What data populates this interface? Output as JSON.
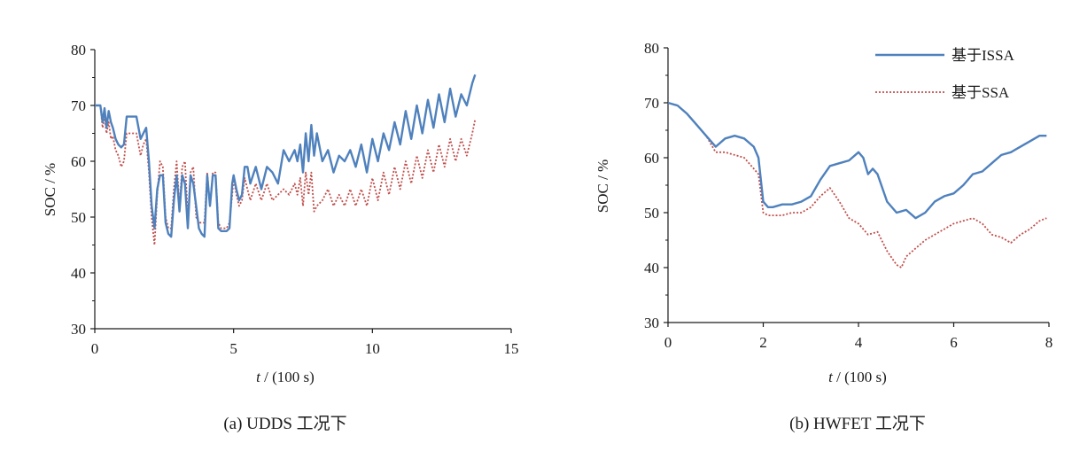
{
  "chart_data": [
    {
      "type": "line",
      "caption": "(a) UDDS 工况下",
      "xlabel_italic": "t",
      "xlabel_rest": " / (100 s)",
      "ylabel": "SOC / %",
      "xlim": [
        0,
        15
      ],
      "ylim": [
        30,
        80
      ],
      "xticks": [
        0,
        5,
        10,
        15
      ],
      "yticks": [
        30,
        40,
        50,
        60,
        70,
        80
      ],
      "grid": false,
      "legend": "none",
      "series": [
        {
          "name": "基于ISSA",
          "color": "#4f81bd",
          "style": "solid",
          "x": [
            0,
            0.1,
            0.2,
            0.28,
            0.35,
            0.42,
            0.5,
            0.58,
            0.65,
            0.75,
            0.85,
            0.95,
            1.05,
            1.15,
            1.25,
            1.5,
            1.65,
            1.75,
            1.85,
            1.95,
            2.05,
            2.15,
            2.25,
            2.35,
            2.45,
            2.55,
            2.65,
            2.75,
            2.85,
            2.95,
            3.05,
            3.15,
            3.25,
            3.35,
            3.45,
            3.55,
            3.65,
            3.75,
            3.85,
            3.95,
            4.05,
            4.15,
            4.25,
            4.35,
            4.45,
            4.55,
            4.65,
            4.75,
            4.85,
            4.95,
            5.0,
            5.1,
            5.2,
            5.3,
            5.4,
            5.5,
            5.6,
            5.8,
            6.0,
            6.2,
            6.4,
            6.6,
            6.8,
            7.0,
            7.2,
            7.3,
            7.4,
            7.5,
            7.6,
            7.7,
            7.8,
            7.9,
            8.0,
            8.2,
            8.4,
            8.6,
            8.8,
            9.0,
            9.2,
            9.4,
            9.6,
            9.8,
            10.0,
            10.2,
            10.4,
            10.6,
            10.8,
            11.0,
            11.2,
            11.4,
            11.6,
            11.8,
            12.0,
            12.2,
            12.4,
            12.6,
            12.8,
            13.0,
            13.2,
            13.4,
            13.6,
            13.7
          ],
          "y": [
            70,
            70,
            70,
            67,
            69.5,
            66,
            69,
            67,
            66,
            64,
            63,
            62.5,
            63,
            68,
            68,
            68,
            64,
            65,
            66,
            60,
            52,
            48,
            55,
            57.5,
            57.5,
            49,
            47,
            46.5,
            53,
            57.5,
            51,
            57.5,
            56,
            48,
            57.5,
            56,
            52,
            48,
            47,
            46.5,
            57.5,
            52,
            57.5,
            57.5,
            48,
            47.5,
            47.5,
            47.5,
            48,
            56,
            57.5,
            55,
            53,
            54,
            59,
            59,
            56,
            59,
            55,
            59,
            58,
            56,
            62,
            60,
            62,
            60,
            63,
            58,
            65,
            60,
            66.5,
            61,
            65,
            60,
            62,
            58,
            61,
            60,
            62,
            59,
            63,
            58,
            64,
            60,
            65,
            62,
            67,
            63,
            69,
            64,
            70,
            65,
            71,
            66,
            72,
            67,
            73,
            68,
            72,
            70,
            74,
            75.5
          ]
        },
        {
          "name": "基于SSA",
          "color": "#c0504d",
          "style": "dotted",
          "x": [
            0,
            0.1,
            0.2,
            0.28,
            0.35,
            0.42,
            0.5,
            0.58,
            0.65,
            0.75,
            0.85,
            0.95,
            1.05,
            1.15,
            1.25,
            1.5,
            1.65,
            1.75,
            1.85,
            1.95,
            2.05,
            2.15,
            2.25,
            2.35,
            2.45,
            2.55,
            2.65,
            2.75,
            2.85,
            2.95,
            3.05,
            3.15,
            3.25,
            3.35,
            3.45,
            3.55,
            3.65,
            3.75,
            3.85,
            3.95,
            4.05,
            4.15,
            4.25,
            4.35,
            4.45,
            4.55,
            4.65,
            4.75,
            4.85,
            4.95,
            5.0,
            5.1,
            5.2,
            5.3,
            5.4,
            5.5,
            5.6,
            5.8,
            6.0,
            6.2,
            6.4,
            6.6,
            6.8,
            7.0,
            7.2,
            7.3,
            7.4,
            7.5,
            7.6,
            7.7,
            7.8,
            7.9,
            8.0,
            8.2,
            8.4,
            8.6,
            8.8,
            9.0,
            9.2,
            9.4,
            9.6,
            9.8,
            10.0,
            10.2,
            10.4,
            10.6,
            10.8,
            11.0,
            11.2,
            11.4,
            11.6,
            11.8,
            12.0,
            12.2,
            12.4,
            12.6,
            12.8,
            13.0,
            13.2,
            13.4,
            13.6,
            13.7
          ],
          "y": [
            70,
            70,
            70,
            66,
            68,
            65,
            67,
            64,
            64.5,
            62,
            61,
            59,
            60,
            65,
            65,
            65,
            61,
            63,
            64,
            58,
            50,
            45,
            54,
            60,
            59,
            50,
            48,
            48,
            55,
            60,
            52,
            59,
            60,
            50,
            58,
            59,
            50,
            49,
            49,
            49,
            58,
            52,
            58,
            58,
            49,
            48,
            48,
            48,
            49,
            54,
            57,
            54,
            52,
            53,
            57,
            55,
            53,
            56,
            53,
            56,
            53,
            54,
            55,
            54,
            56,
            54,
            57,
            52,
            58,
            54,
            58,
            51,
            52,
            53,
            55,
            52,
            54,
            52,
            55,
            52,
            55,
            52,
            57,
            53,
            58,
            54,
            59,
            55,
            60,
            56,
            61,
            57,
            62,
            58,
            63,
            59,
            64,
            60,
            64,
            61,
            65,
            67.5
          ]
        }
      ]
    },
    {
      "type": "line",
      "caption": "(b) HWFET 工况下",
      "xlabel_italic": "t",
      "xlabel_rest": " / (100 s)",
      "ylabel": "SOC / %",
      "xlim": [
        0,
        8
      ],
      "ylim": [
        30,
        80
      ],
      "xticks": [
        0,
        2,
        4,
        6,
        8
      ],
      "yticks": [
        30,
        40,
        50,
        60,
        70,
        80
      ],
      "grid": false,
      "legend": "top-right",
      "series": [
        {
          "name": "基于ISSA",
          "color": "#4f81bd",
          "style": "solid",
          "x": [
            0,
            0.2,
            0.4,
            0.6,
            0.8,
            1.0,
            1.2,
            1.4,
            1.6,
            1.8,
            1.9,
            2.0,
            2.1,
            2.2,
            2.4,
            2.6,
            2.8,
            3.0,
            3.2,
            3.4,
            3.6,
            3.8,
            4.0,
            4.1,
            4.2,
            4.3,
            4.4,
            4.6,
            4.8,
            5.0,
            5.2,
            5.4,
            5.6,
            5.8,
            6.0,
            6.2,
            6.4,
            6.6,
            6.8,
            7.0,
            7.2,
            7.4,
            7.6,
            7.8,
            7.95
          ],
          "y": [
            70,
            69.5,
            68,
            66,
            64,
            62,
            63.5,
            64,
            63.5,
            62,
            60,
            52,
            51,
            51,
            51.5,
            51.5,
            52,
            53,
            56,
            58.5,
            59,
            59.5,
            61,
            60,
            57,
            58,
            57,
            52,
            50,
            50.5,
            49,
            50,
            52,
            53,
            53.5,
            55,
            57,
            57.5,
            59,
            60.5,
            61,
            62,
            63,
            64,
            64
          ]
        },
        {
          "name": "基于SSA",
          "color": "#c0504d",
          "style": "dotted",
          "x": [
            0,
            0.2,
            0.4,
            0.6,
            0.8,
            1.0,
            1.2,
            1.4,
            1.6,
            1.8,
            1.9,
            2.0,
            2.1,
            2.2,
            2.4,
            2.6,
            2.8,
            3.0,
            3.2,
            3.4,
            3.6,
            3.8,
            4.0,
            4.2,
            4.4,
            4.6,
            4.8,
            4.9,
            5.0,
            5.2,
            5.4,
            5.6,
            5.8,
            6.0,
            6.2,
            6.4,
            6.6,
            6.8,
            7.0,
            7.2,
            7.4,
            7.6,
            7.8,
            7.95
          ],
          "y": [
            70,
            69.5,
            68,
            66,
            64,
            61,
            61,
            60.5,
            60,
            58,
            57,
            50,
            49.5,
            49.5,
            49.5,
            50,
            50,
            51,
            53,
            54.5,
            52,
            49,
            48,
            46,
            46.5,
            43,
            40.5,
            40,
            42,
            43.5,
            45,
            46,
            47,
            48,
            48.5,
            49,
            48,
            46,
            45.5,
            44.5,
            46,
            47,
            48.5,
            49
          ]
        }
      ]
    }
  ]
}
